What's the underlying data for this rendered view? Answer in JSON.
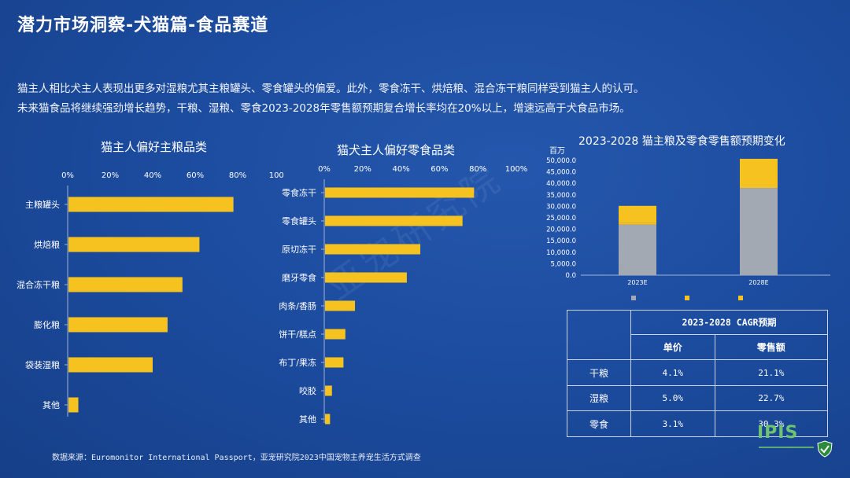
{
  "header": {
    "title": "潜力市场洞察-犬猫篇-食品赛道"
  },
  "description": {
    "line1": "猫主人相比犬主人表现出更多对湿粮尤其主粮罐头、零食罐头的偏爱。此外，零食冻干、烘焙粮、混合冻干粮同样受到猫主人的认可。",
    "line2": "未来猫食品将继续强劲增长趋势，干粮、湿粮、零食2023-2028年零售额预期复合增长率均在20%以上，增速远高于犬食品市场。"
  },
  "colors": {
    "background": "#1b4a9c",
    "bar": "#f5c220",
    "base_grey": "#a3a9b3",
    "dry_yellow": "#f5c220"
  },
  "chart_data": [
    {
      "type": "bar",
      "orientation": "horizontal",
      "title": "猫主人偏好主粮品类",
      "x_ticks": [
        "0%",
        "20%",
        "40%",
        "60%",
        "80%",
        "100%"
      ],
      "xlim": [
        0,
        100
      ],
      "categories": [
        "主粮罐头",
        "烘焙粮",
        "混合冻干粮",
        "膨化粮",
        "袋装湿粮",
        "其他"
      ],
      "values": [
        78,
        62,
        54,
        47,
        40,
        5
      ]
    },
    {
      "type": "bar",
      "orientation": "horizontal",
      "title": "猫犬主人偏好零食品类",
      "x_ticks": [
        "0%",
        "20%",
        "40%",
        "60%",
        "80%",
        "100%"
      ],
      "xlim": [
        0,
        100
      ],
      "categories": [
        "零食冻干",
        "零食罐头",
        "原切冻干",
        "磨牙零食",
        "肉条/香肠",
        "饼干/糕点",
        "布丁/果冻",
        "咬胶",
        "其他"
      ],
      "values": [
        78,
        72,
        50,
        43,
        16,
        11,
        10,
        4,
        3
      ]
    },
    {
      "type": "bar",
      "stacked": true,
      "title": "2023-2028 猫主粮及零食零售额预期变化",
      "unit": "百万",
      "y_ticks": [
        "50,000.0",
        "45,000.0",
        "40,000.0",
        "35,000.0",
        "30,000.0",
        "25,000.0",
        "20,000.0",
        "15,000.0",
        "10,000.0",
        "5,000.0",
        "0.0"
      ],
      "ylim": [
        0,
        50000
      ],
      "categories": [
        "2023E",
        "2028E"
      ],
      "series": [
        {
          "values": [
            22000,
            38000
          ]
        },
        {
          "values": [
            700,
            1200
          ]
        },
        {
          "values": [
            7500,
            11500
          ]
        }
      ]
    }
  ],
  "cagr_table": {
    "title": "2023-2028 CAGR预期",
    "col_headers": [
      "单价",
      "零售额"
    ],
    "rows": [
      {
        "label": "干粮",
        "price": "4.1%",
        "sales": "21.1%"
      },
      {
        "label": "湿粮",
        "price": "5.0%",
        "sales": "22.7%"
      },
      {
        "label": "零食",
        "price": "3.1%",
        "sales": "30.3%"
      }
    ]
  },
  "source": "数据来源：Euromonitor International Passport，亚宠研究院2023中国宠物主养宠生活方式调查",
  "watermark": "亚宠研究院",
  "logo": {
    "text": "IPIS"
  }
}
